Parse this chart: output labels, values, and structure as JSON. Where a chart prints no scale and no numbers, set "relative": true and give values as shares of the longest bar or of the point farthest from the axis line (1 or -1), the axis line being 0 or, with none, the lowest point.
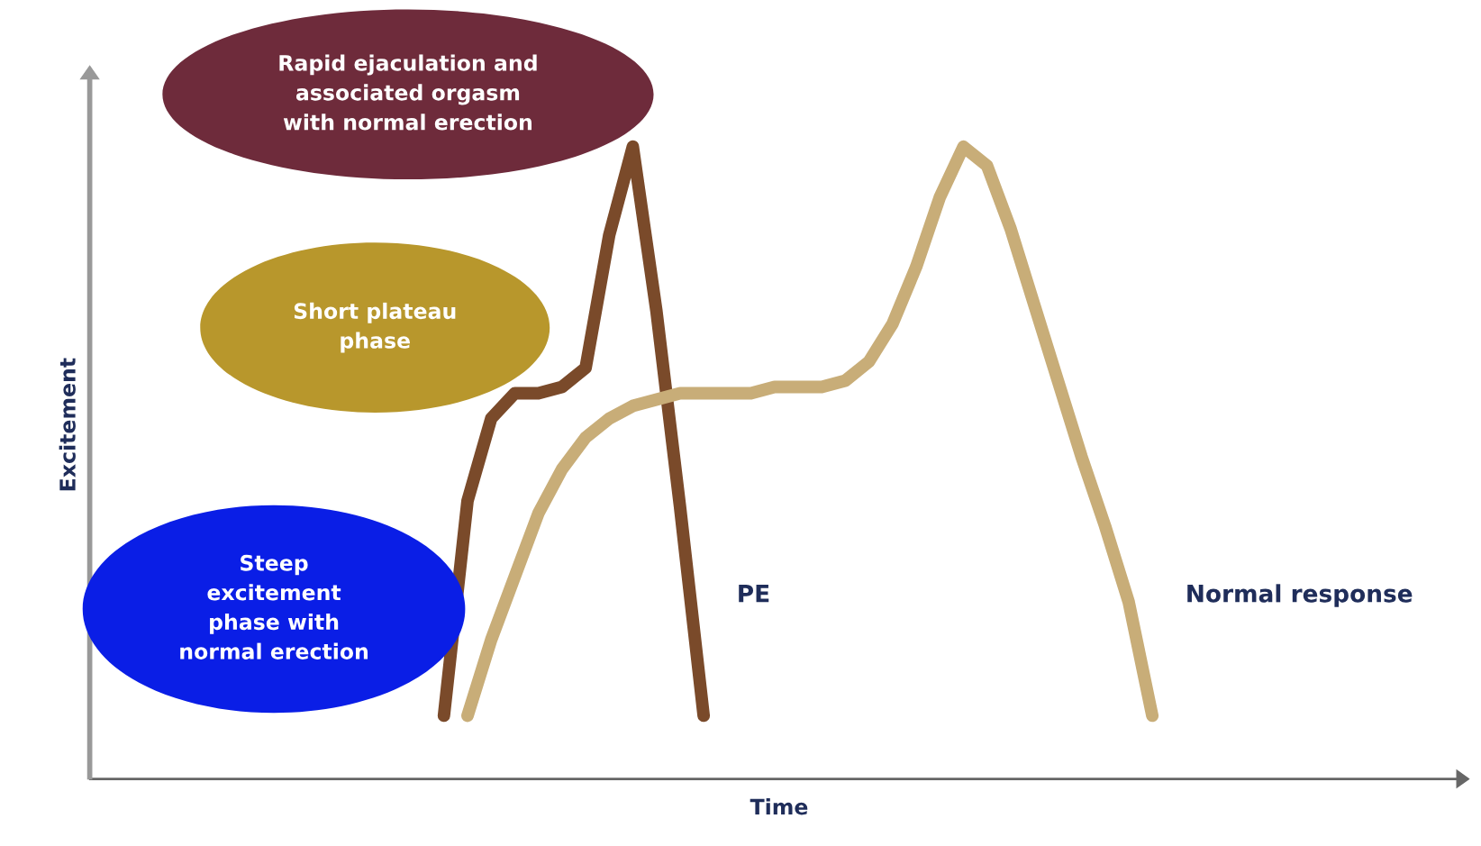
{
  "chart_data": {
    "type": "line",
    "relative": true,
    "xlabel": "Time",
    "ylabel": "Excitement",
    "categories": [
      null,
      null,
      null,
      null,
      null,
      null,
      null,
      null,
      null,
      null,
      null,
      null,
      null,
      null,
      null,
      null,
      null,
      null,
      null,
      null,
      null,
      null,
      null,
      null,
      null,
      null,
      null,
      null,
      null,
      null,
      null,
      null,
      null,
      null,
      null,
      null,
      null,
      null,
      null,
      null,
      null,
      null,
      null,
      null,
      null,
      null,
      null,
      null,
      null,
      null,
      null,
      null,
      null,
      null,
      null,
      null,
      null,
      null,
      null
    ],
    "series": [
      {
        "name": "PE",
        "color": "#7a4a2a",
        "values": [
          null,
          null,
          null,
          null,
          null,
          null,
          null,
          null,
          null,
          null,
          null,
          null,
          null,
          null,
          null,
          0.1,
          0.44,
          0.57,
          0.61,
          0.61,
          0.62,
          0.65,
          0.86,
          1.0,
          0.74,
          0.43,
          0.1,
          null,
          null,
          null,
          null,
          null,
          null,
          null,
          null,
          null,
          null,
          null,
          null,
          null,
          null,
          null,
          null,
          null,
          null,
          null,
          null,
          null,
          null,
          null,
          null,
          null,
          null,
          null,
          null,
          null,
          null,
          null,
          null
        ]
      },
      {
        "name": "Normal response",
        "color": "#c8ad78",
        "values": [
          null,
          null,
          null,
          null,
          null,
          null,
          null,
          null,
          null,
          null,
          null,
          null,
          null,
          null,
          null,
          null,
          0.1,
          0.22,
          0.32,
          0.42,
          0.49,
          0.54,
          0.57,
          0.59,
          0.6,
          0.61,
          0.61,
          0.61,
          0.61,
          0.62,
          0.62,
          0.62,
          0.63,
          0.66,
          0.72,
          0.81,
          0.92,
          1.0,
          0.97,
          0.87,
          0.75,
          0.63,
          0.51,
          0.4,
          0.28,
          0.1,
          null,
          null,
          null,
          null,
          null,
          null,
          null,
          null,
          null,
          null,
          null,
          null,
          null
        ]
      }
    ],
    "annotations": [
      "Rapid ejaculation and\nassociated orgasm\nwith normal erection",
      "Short plateau\nphase",
      "Steep\nexcitement\nphase with\nnormal erection"
    ],
    "legend": false,
    "grid": false
  }
}
